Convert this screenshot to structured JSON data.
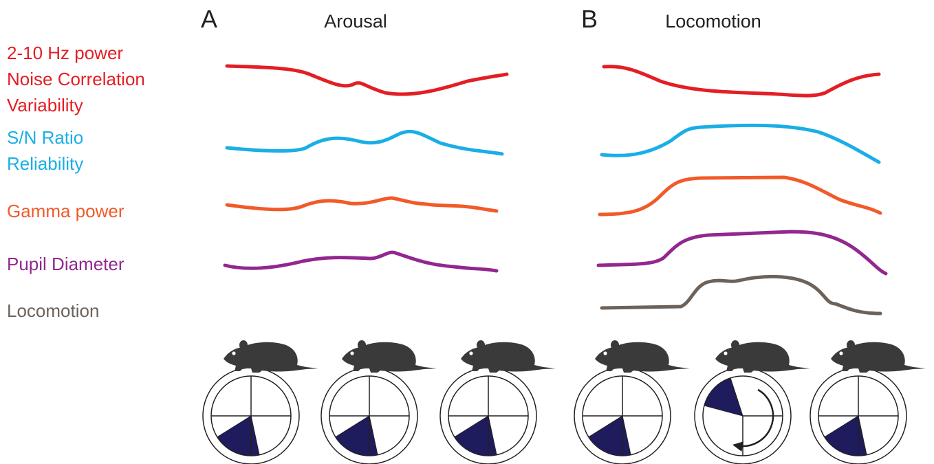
{
  "panels": [
    {
      "letter": "A",
      "title": "Arousal"
    },
    {
      "letter": "B",
      "title": "Locomotion"
    }
  ],
  "labels": [
    {
      "lines": [
        "2-10 Hz power",
        "Noise Correlation",
        "Variability"
      ]
    },
    {
      "lines": [
        "S/N Ratio",
        "Reliability"
      ]
    },
    {
      "lines": [
        "Gamma power"
      ]
    },
    {
      "lines": [
        "Pupil Diameter"
      ]
    },
    {
      "lines": [
        "Locomotion"
      ]
    }
  ]
}
